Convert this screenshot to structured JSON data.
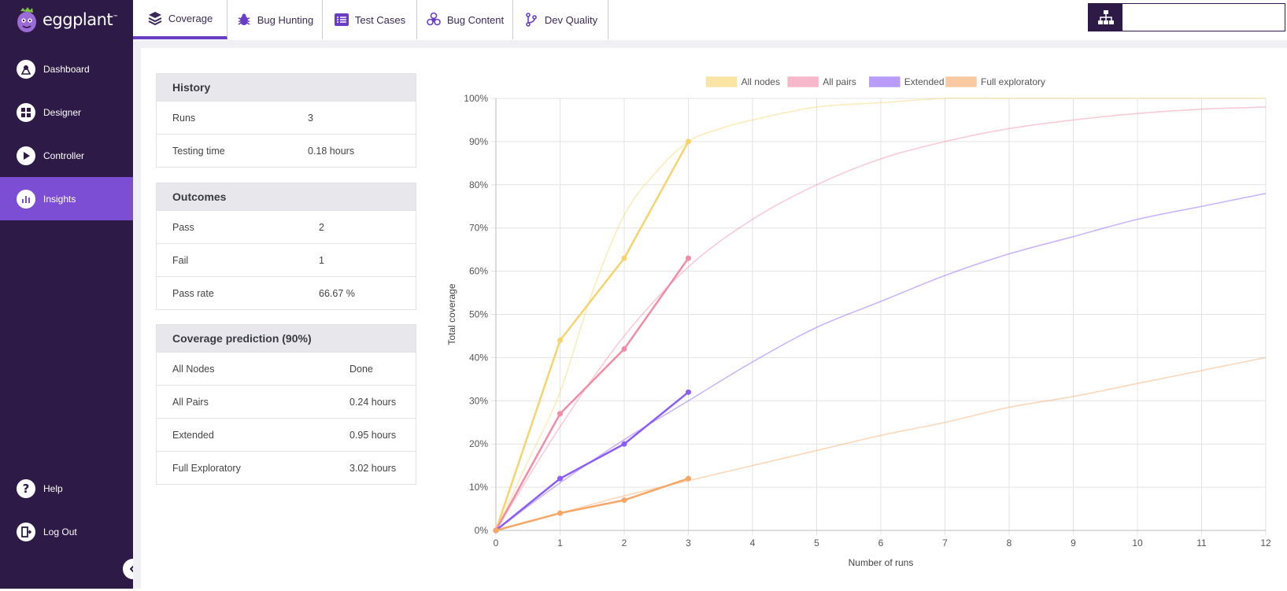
{
  "app": {
    "logo": "eggplant"
  },
  "sidebar": {
    "items": [
      {
        "label": "Dashboard"
      },
      {
        "label": "Designer"
      },
      {
        "label": "Controller"
      },
      {
        "label": "Insights"
      }
    ],
    "bottom": [
      {
        "label": "Help"
      },
      {
        "label": "Log Out"
      }
    ]
  },
  "tabs": [
    {
      "label": "Coverage",
      "icon": "layers-icon"
    },
    {
      "label": "Bug Hunting",
      "icon": "bug-icon"
    },
    {
      "label": "Test Cases",
      "icon": "list-icon"
    },
    {
      "label": "Bug Content",
      "icon": "biohazard-icon"
    },
    {
      "label": "Dev Quality",
      "icon": "branch-icon"
    }
  ],
  "history": {
    "title": "History",
    "rows": [
      {
        "key": "Runs",
        "value": "3"
      },
      {
        "key": "Testing time",
        "value": "0.18 hours"
      }
    ]
  },
  "outcomes": {
    "title": "Outcomes",
    "rows": [
      {
        "key": "Pass",
        "value": "2"
      },
      {
        "key": "Fail",
        "value": "1"
      },
      {
        "key": "Pass rate",
        "value": "66.67 %"
      }
    ]
  },
  "prediction": {
    "title": "Coverage prediction (90%)",
    "rows": [
      {
        "key": "All Nodes",
        "value": "Done"
      },
      {
        "key": "All Pairs",
        "value": "0.24 hours"
      },
      {
        "key": "Extended",
        "value": "0.95 hours"
      },
      {
        "key": "Full Exploratory",
        "value": "3.02 hours"
      }
    ]
  },
  "colors": {
    "sidebar_bg": "#2d1a47",
    "accent": "#7c4ed4",
    "all_nodes": "#f7d46b",
    "all_pairs": "#f28ca6",
    "extended": "#8b5cf6",
    "full_exploratory": "#f6a765"
  },
  "chart_data": {
    "type": "line",
    "xlabel": "Number of runs",
    "ylabel": "Total coverage",
    "xlim": [
      0,
      12
    ],
    "ylim": [
      0,
      100
    ],
    "x_ticks": [
      "0",
      "1",
      "2",
      "3",
      "4",
      "5",
      "6",
      "7",
      "8",
      "9",
      "10",
      "11",
      "12"
    ],
    "y_ticks": [
      "0%",
      "10%",
      "20%",
      "30%",
      "40%",
      "50%",
      "60%",
      "70%",
      "80%",
      "90%",
      "100%"
    ],
    "grid": true,
    "legend_position": "top",
    "series": [
      {
        "name": "All nodes",
        "color": "#f7d46b",
        "x": [
          0,
          1,
          2,
          3
        ],
        "y": [
          0,
          44,
          63,
          90
        ],
        "prediction": {
          "x": [
            0,
            0.5,
            1,
            1.5,
            2,
            2.5,
            3,
            3.5,
            4,
            5,
            6,
            7,
            8,
            9,
            10,
            11,
            12
          ],
          "y": [
            0,
            16,
            32,
            55,
            73,
            83,
            90,
            93,
            95,
            98,
            99,
            100,
            100,
            100,
            100,
            100,
            100
          ]
        }
      },
      {
        "name": "All pairs",
        "color": "#f28ca6",
        "x": [
          0,
          1,
          2,
          3
        ],
        "y": [
          0,
          27,
          42,
          63
        ],
        "prediction": {
          "x": [
            0,
            1,
            2,
            3,
            4,
            5,
            6,
            7,
            8,
            9,
            10,
            11,
            12
          ],
          "y": [
            0,
            24,
            45,
            61,
            72,
            80,
            86,
            90,
            93,
            95,
            96.5,
            97.5,
            98
          ]
        }
      },
      {
        "name": "Extended",
        "color": "#8b5cf6",
        "x": [
          0,
          1,
          2,
          3
        ],
        "y": [
          0,
          12,
          20,
          32
        ],
        "prediction": {
          "x": [
            0,
            1,
            2,
            3,
            4,
            5,
            6,
            7,
            8,
            9,
            10,
            11,
            12
          ],
          "y": [
            0,
            11,
            21,
            30,
            39,
            47,
            53,
            59,
            64,
            68,
            72,
            75,
            78
          ]
        }
      },
      {
        "name": "Full exploratory",
        "color": "#f6a765",
        "x": [
          0,
          1,
          2,
          3
        ],
        "y": [
          0,
          4,
          7,
          12
        ],
        "prediction": {
          "x": [
            0,
            1,
            2,
            3,
            4,
            5,
            6,
            7,
            8,
            9,
            10,
            11,
            12
          ],
          "y": [
            0,
            4,
            8,
            11.5,
            15,
            18.5,
            22,
            25,
            28.5,
            31,
            34,
            37,
            40
          ]
        }
      }
    ]
  }
}
